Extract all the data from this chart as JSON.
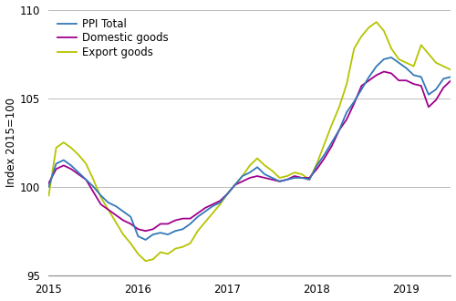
{
  "ylabel": "Index 2015=100",
  "ylim": [
    95,
    110
  ],
  "yticks": [
    95,
    100,
    105,
    110
  ],
  "xtick_labels": [
    "2015",
    "2016",
    "2017",
    "2018",
    "2019"
  ],
  "xtick_positions": [
    0,
    12,
    24,
    36,
    48
  ],
  "line_colors": {
    "ppi_total": "#3378b8",
    "domestic": "#a0008c",
    "export": "#b5c400"
  },
  "legend_labels": [
    "PPI Total",
    "Domestic goods",
    "Export goods"
  ],
  "ppi_total": [
    100.0,
    101.3,
    101.5,
    101.2,
    100.8,
    100.4,
    100.0,
    99.5,
    99.1,
    98.9,
    98.6,
    98.3,
    97.2,
    97.0,
    97.3,
    97.4,
    97.3,
    97.5,
    97.6,
    97.9,
    98.3,
    98.6,
    98.9,
    99.1,
    99.6,
    100.1,
    100.6,
    100.8,
    101.1,
    100.7,
    100.5,
    100.3,
    100.4,
    100.5,
    100.5,
    100.4,
    101.2,
    101.8,
    102.5,
    103.2,
    104.2,
    104.8,
    105.5,
    106.2,
    106.8,
    107.2,
    107.3,
    107.0,
    106.7,
    106.3,
    106.2,
    105.2,
    105.5,
    106.1,
    106.2
  ],
  "domestic": [
    100.2,
    101.0,
    101.2,
    101.0,
    100.7,
    100.4,
    99.7,
    99.0,
    98.7,
    98.4,
    98.1,
    97.9,
    97.6,
    97.5,
    97.6,
    97.9,
    97.9,
    98.1,
    98.2,
    98.2,
    98.5,
    98.8,
    99.0,
    99.2,
    99.6,
    100.1,
    100.3,
    100.5,
    100.6,
    100.5,
    100.4,
    100.3,
    100.4,
    100.6,
    100.5,
    100.5,
    101.0,
    101.6,
    102.3,
    103.2,
    103.8,
    104.7,
    105.7,
    106.0,
    106.3,
    106.5,
    106.4,
    106.0,
    106.0,
    105.8,
    105.7,
    104.5,
    104.9,
    105.6,
    106.0
  ],
  "export": [
    99.5,
    102.2,
    102.5,
    102.2,
    101.8,
    101.3,
    100.4,
    99.4,
    98.7,
    98.0,
    97.3,
    96.8,
    96.2,
    95.8,
    95.9,
    96.3,
    96.2,
    96.5,
    96.6,
    96.8,
    97.5,
    98.0,
    98.5,
    99.0,
    99.6,
    100.1,
    100.6,
    101.2,
    101.6,
    101.2,
    100.9,
    100.5,
    100.6,
    100.8,
    100.7,
    100.4,
    101.3,
    102.4,
    103.5,
    104.5,
    105.8,
    107.8,
    108.5,
    109.0,
    109.3,
    108.8,
    107.8,
    107.2,
    107.0,
    106.8,
    108.0,
    107.5,
    107.0,
    106.8,
    106.6
  ],
  "line_width": 1.3,
  "background_color": "#ffffff",
  "grid_color": "#bbbbbb",
  "font_size": 8.5
}
